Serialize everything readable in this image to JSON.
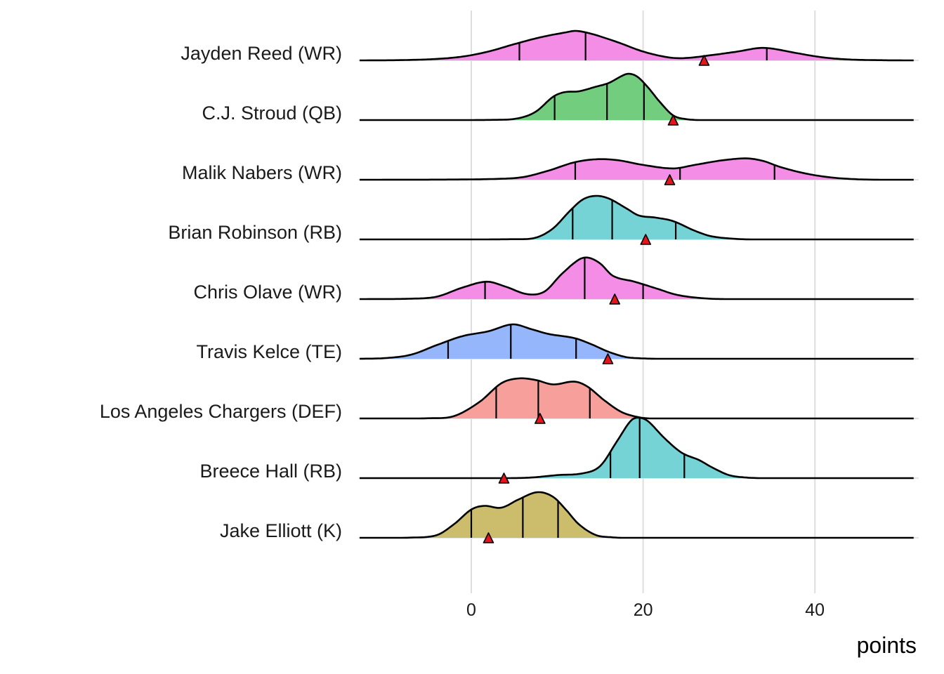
{
  "chart_data": {
    "type": "ridgeline-density",
    "title": "",
    "xlabel": "points",
    "ylabel": "",
    "xlim": [
      -13,
      51.5
    ],
    "x_ticks": [
      0,
      20,
      40
    ],
    "x_tick_labels": [
      "0",
      "20",
      "40"
    ],
    "grid": "vertical major gridlines at 0, 20, 40",
    "legend": "none",
    "marker": {
      "shape": "triangle",
      "color": "#E8141B",
      "meaning": "actual points"
    },
    "quantile_lines": "black vertical lines at 3 quantiles per ridge",
    "series": [
      {
        "name": "Jayden Reed (WR)",
        "fill": "#F48DE6",
        "quantiles": [
          5.6,
          13.3,
          34.4
        ],
        "marker": 27.1,
        "density_profile": [
          [
            -13,
            0
          ],
          [
            -8,
            0.01
          ],
          [
            -4,
            0.05
          ],
          [
            -1,
            0.13
          ],
          [
            2,
            0.3
          ],
          [
            5,
            0.55
          ],
          [
            8,
            0.78
          ],
          [
            11,
            0.95
          ],
          [
            12.2,
            1.0
          ],
          [
            14,
            0.9
          ],
          [
            17,
            0.62
          ],
          [
            20,
            0.3
          ],
          [
            23,
            0.1
          ],
          [
            25,
            0.08
          ],
          [
            28,
            0.18
          ],
          [
            31,
            0.3
          ],
          [
            33.5,
            0.42
          ],
          [
            35,
            0.4
          ],
          [
            38,
            0.24
          ],
          [
            41,
            0.1
          ],
          [
            44,
            0.03
          ],
          [
            48,
            0.005
          ],
          [
            51.5,
            0
          ]
        ]
      },
      {
        "name": "C.J. Stroud (QB)",
        "fill": "#73CD7F",
        "quantiles": [
          9.7,
          15.8,
          20.1
        ],
        "marker": 23.5,
        "density_profile": [
          [
            -13,
            0
          ],
          [
            3,
            0.005
          ],
          [
            5.5,
            0.04
          ],
          [
            7.5,
            0.18
          ],
          [
            9.5,
            0.5
          ],
          [
            10.8,
            0.6
          ],
          [
            12.5,
            0.62
          ],
          [
            14.5,
            0.72
          ],
          [
            16,
            0.8
          ],
          [
            17.5,
            0.95
          ],
          [
            18.3,
            1.0
          ],
          [
            19.3,
            0.94
          ],
          [
            20.5,
            0.72
          ],
          [
            22,
            0.38
          ],
          [
            23.5,
            0.1
          ],
          [
            25,
            0.02
          ],
          [
            27,
            0
          ],
          [
            51.5,
            0
          ]
        ]
      },
      {
        "name": "Malik Nabers (WR)",
        "fill": "#F48DE6",
        "quantiles": [
          12.1,
          24.3,
          35.3
        ],
        "marker": 23.1,
        "density_profile": [
          [
            -13,
            0
          ],
          [
            -2,
            0.01
          ],
          [
            3,
            0.04
          ],
          [
            6,
            0.12
          ],
          [
            9,
            0.42
          ],
          [
            12,
            0.8
          ],
          [
            14.5,
            0.94
          ],
          [
            17,
            0.9
          ],
          [
            20,
            0.68
          ],
          [
            23.5,
            0.52
          ],
          [
            26,
            0.68
          ],
          [
            29,
            0.88
          ],
          [
            32,
            0.98
          ],
          [
            34,
            0.86
          ],
          [
            36,
            0.58
          ],
          [
            39,
            0.28
          ],
          [
            42,
            0.1
          ],
          [
            45,
            0.02
          ],
          [
            48,
            0
          ],
          [
            51.5,
            0
          ]
        ]
      },
      {
        "name": "Brian Robinson (RB)",
        "fill": "#75D3D5",
        "quantiles": [
          11.8,
          16.4,
          23.8
        ],
        "marker": 20.3,
        "density_profile": [
          [
            -13,
            0
          ],
          [
            5,
            0.005
          ],
          [
            7.5,
            0.04
          ],
          [
            9.5,
            0.25
          ],
          [
            11.5,
            0.66
          ],
          [
            13,
            0.92
          ],
          [
            14.5,
            1.0
          ],
          [
            16,
            0.94
          ],
          [
            18,
            0.72
          ],
          [
            19.5,
            0.55
          ],
          [
            21.5,
            0.5
          ],
          [
            23.5,
            0.42
          ],
          [
            26,
            0.2
          ],
          [
            28,
            0.07
          ],
          [
            31,
            0.01
          ],
          [
            33,
            0
          ],
          [
            51.5,
            0
          ]
        ]
      },
      {
        "name": "Chris Olave (WR)",
        "fill": "#F48DE6",
        "quantiles": [
          1.6,
          13.2,
          20.0
        ],
        "marker": 16.7,
        "density_profile": [
          [
            -13,
            0
          ],
          [
            -7,
            0.01
          ],
          [
            -4,
            0.06
          ],
          [
            -1,
            0.28
          ],
          [
            1.8,
            0.42
          ],
          [
            4,
            0.3
          ],
          [
            6.5,
            0.12
          ],
          [
            8.5,
            0.18
          ],
          [
            10.5,
            0.6
          ],
          [
            12.5,
            0.95
          ],
          [
            13.6,
            1.0
          ],
          [
            15,
            0.86
          ],
          [
            16.5,
            0.56
          ],
          [
            19,
            0.42
          ],
          [
            21.5,
            0.26
          ],
          [
            24,
            0.1
          ],
          [
            27,
            0.02
          ],
          [
            30,
            0
          ],
          [
            51.5,
            0
          ]
        ]
      },
      {
        "name": "Travis Kelce (TE)",
        "fill": "#95B6FB",
        "quantiles": [
          -2.7,
          4.6,
          12.2
        ],
        "marker": 15.9,
        "density_profile": [
          [
            -13,
            0
          ],
          [
            -10,
            0.02
          ],
          [
            -7,
            0.12
          ],
          [
            -4,
            0.4
          ],
          [
            -1,
            0.66
          ],
          [
            2,
            0.8
          ],
          [
            4.8,
            1.0
          ],
          [
            7,
            0.86
          ],
          [
            9,
            0.72
          ],
          [
            12,
            0.6
          ],
          [
            14,
            0.42
          ],
          [
            16,
            0.2
          ],
          [
            18,
            0.05
          ],
          [
            20,
            0.01
          ],
          [
            22,
            0
          ],
          [
            51.5,
            0
          ]
        ]
      },
      {
        "name": "Los Angeles Chargers (DEF)",
        "fill": "#F7A09B",
        "quantiles": [
          2.9,
          7.8,
          13.8
        ],
        "marker": 8.0,
        "density_profile": [
          [
            -13,
            0
          ],
          [
            -5,
            0.005
          ],
          [
            -2,
            0.06
          ],
          [
            1,
            0.42
          ],
          [
            3.5,
            0.88
          ],
          [
            5.5,
            1.0
          ],
          [
            7.5,
            0.96
          ],
          [
            9.5,
            0.85
          ],
          [
            12,
            0.92
          ],
          [
            13.5,
            0.8
          ],
          [
            15.5,
            0.45
          ],
          [
            17.5,
            0.16
          ],
          [
            19.5,
            0.03
          ],
          [
            21,
            0
          ],
          [
            51.5,
            0
          ]
        ]
      },
      {
        "name": "Breece Hall (RB)",
        "fill": "#75D3D5",
        "quantiles": [
          16.2,
          19.6,
          24.8
        ],
        "marker": 3.8,
        "density_profile": [
          [
            -13,
            0
          ],
          [
            4,
            0
          ],
          [
            7,
            0.01
          ],
          [
            10,
            0.05
          ],
          [
            13,
            0.08
          ],
          [
            15,
            0.2
          ],
          [
            17,
            0.62
          ],
          [
            18.5,
            0.94
          ],
          [
            19.3,
            1.0
          ],
          [
            20.5,
            0.95
          ],
          [
            22.5,
            0.66
          ],
          [
            24.5,
            0.42
          ],
          [
            26.5,
            0.3
          ],
          [
            28,
            0.18
          ],
          [
            30,
            0.05
          ],
          [
            32,
            0.01
          ],
          [
            34,
            0
          ],
          [
            51.5,
            0
          ]
        ]
      },
      {
        "name": "Jake Elliott (K)",
        "fill": "#CBBD6C",
        "quantiles": [
          0.0,
          6.0,
          10.1
        ],
        "marker": 2.0,
        "density_profile": [
          [
            -13,
            0
          ],
          [
            -7,
            0.005
          ],
          [
            -4,
            0.06
          ],
          [
            -2,
            0.3
          ],
          [
            0,
            0.62
          ],
          [
            1.5,
            0.7
          ],
          [
            3.5,
            0.66
          ],
          [
            5.5,
            0.84
          ],
          [
            7.7,
            1.0
          ],
          [
            9.5,
            0.9
          ],
          [
            11,
            0.62
          ],
          [
            12.5,
            0.3
          ],
          [
            14.5,
            0.06
          ],
          [
            16.5,
            0.01
          ],
          [
            18,
            0
          ],
          [
            51.5,
            0
          ]
        ]
      }
    ]
  }
}
